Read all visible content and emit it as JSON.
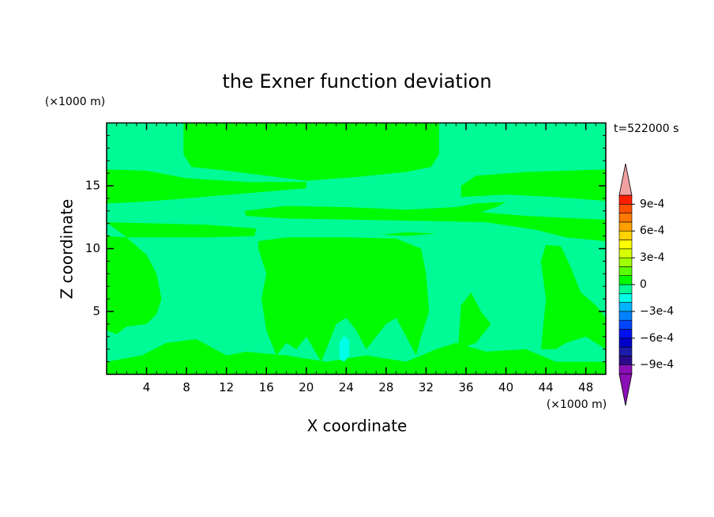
{
  "chart_data": {
    "type": "contour",
    "title": "the Exner function deviation",
    "xlabel": "X coordinate",
    "ylabel": "Z coordinate",
    "xunit": "(×1000 m)",
    "yunit": "(×1000 m)",
    "time_label": "t=522000 s",
    "xlim": [
      0,
      50
    ],
    "ylim": [
      0,
      20
    ],
    "xticks": [
      4,
      8,
      12,
      16,
      20,
      24,
      28,
      32,
      36,
      40,
      44,
      48
    ],
    "yticks": [
      5,
      10,
      15
    ],
    "minor_tick_step": 1,
    "levels": [
      -0.001,
      -0.0009,
      -0.0008,
      -0.0007,
      -0.0006,
      -0.0005,
      -0.0004,
      -0.0003,
      -0.0002,
      -0.0001,
      0,
      0.0001,
      0.0002,
      0.0003,
      0.0004,
      0.0005,
      0.0006,
      0.0007,
      0.0008,
      0.0009,
      0.001
    ],
    "colors": [
      "#8a0fb4",
      "#2a0a8a",
      "#1c1ca8",
      "#0000c8",
      "#0010ee",
      "#0046ff",
      "#0082ff",
      "#00b4ff",
      "#00ffe6",
      "#00fa96",
      "#00fa00",
      "#5cff00",
      "#a0ff00",
      "#d8ff00",
      "#ffff00",
      "#ffd200",
      "#ffa000",
      "#ff7800",
      "#ff5000",
      "#ff1e00"
    ],
    "extend_colors": [
      "#8a0fb4",
      "#f0a0a0"
    ],
    "colorbar_ticks": [
      {
        "value": 0.0009,
        "label": "9e-4"
      },
      {
        "value": 0.0006,
        "label": "6e-4"
      },
      {
        "value": 0.0003,
        "label": "3e-4"
      },
      0,
      {
        "value": -0.0003,
        "label": "−3e-4"
      },
      {
        "value": -0.0006,
        "label": "−6e-4"
      },
      {
        "value": -0.0009,
        "label": "−9e-4"
      }
    ],
    "regions": [
      {
        "level": -0.0001,
        "points": [
          [
            0,
            0
          ],
          [
            50,
            0
          ],
          [
            50,
            20
          ],
          [
            0,
            20
          ]
        ]
      },
      {
        "level": 0,
        "points": [
          [
            7.7,
            20
          ],
          [
            7.7,
            17.5
          ],
          [
            8.5,
            16.5
          ],
          [
            12,
            16.2
          ],
          [
            16,
            15.8
          ],
          [
            20,
            15.4
          ],
          [
            25,
            15.7
          ],
          [
            30,
            16.1
          ],
          [
            32.5,
            16.5
          ],
          [
            33.3,
            17.5
          ],
          [
            33.3,
            20
          ]
        ]
      },
      {
        "level": 0,
        "points": [
          [
            0,
            16.3
          ],
          [
            4,
            16.2
          ],
          [
            8,
            15.6
          ],
          [
            14,
            15.3
          ],
          [
            20,
            15.3
          ],
          [
            20,
            14.8
          ],
          [
            14,
            14.4
          ],
          [
            8,
            14
          ],
          [
            3,
            13.7
          ],
          [
            0,
            13.6
          ]
        ]
      },
      {
        "level": 0,
        "points": [
          [
            50,
            16.3
          ],
          [
            42,
            16.1
          ],
          [
            37,
            15.8
          ],
          [
            35.5,
            15
          ],
          [
            35.5,
            14.1
          ],
          [
            40,
            14.3
          ],
          [
            45,
            14.1
          ],
          [
            50,
            13.8
          ]
        ]
      },
      {
        "level": 0,
        "points": [
          [
            13.8,
            13
          ],
          [
            18,
            13.4
          ],
          [
            24,
            13.3
          ],
          [
            30,
            13.1
          ],
          [
            35,
            13.3
          ],
          [
            37,
            13.6
          ],
          [
            40,
            13.7
          ],
          [
            39,
            13.3
          ],
          [
            37.5,
            12.9
          ],
          [
            42,
            12.6
          ],
          [
            50,
            12.3
          ],
          [
            50,
            10.6
          ],
          [
            46,
            10.9
          ],
          [
            43,
            11.5
          ],
          [
            38,
            12.1
          ],
          [
            32,
            12.2
          ],
          [
            25,
            12.3
          ],
          [
            18,
            12.4
          ],
          [
            14,
            12.6
          ]
        ]
      },
      {
        "level": 0,
        "points": [
          [
            0,
            12.1
          ],
          [
            10,
            11.9
          ],
          [
            15,
            11.6
          ],
          [
            14.8,
            11
          ],
          [
            10,
            10.9
          ],
          [
            2,
            10.9
          ]
        ]
      },
      {
        "level": 0,
        "points": [
          [
            0,
            11
          ],
          [
            2,
            10.9
          ],
          [
            4,
            9.5
          ],
          [
            5,
            8
          ],
          [
            5.5,
            6
          ],
          [
            5,
            4.8
          ],
          [
            4,
            4
          ],
          [
            2,
            3.8
          ],
          [
            1,
            3.2
          ],
          [
            0,
            3.5
          ]
        ]
      },
      {
        "level": 0,
        "points": [
          [
            15.2,
            10.6
          ],
          [
            18,
            10.9
          ],
          [
            24,
            10.9
          ],
          [
            29,
            10.8
          ],
          [
            31.5,
            10
          ],
          [
            32,
            8
          ],
          [
            32.3,
            5
          ],
          [
            31.5,
            3
          ],
          [
            31,
            1.5
          ],
          [
            30,
            3
          ],
          [
            29,
            4.5
          ],
          [
            28,
            4
          ],
          [
            27,
            3
          ],
          [
            26,
            2
          ],
          [
            25,
            3.5
          ],
          [
            24,
            4.5
          ],
          [
            23,
            4
          ],
          [
            22,
            2
          ],
          [
            21.5,
            1
          ],
          [
            20,
            3
          ],
          [
            19,
            2
          ],
          [
            18,
            2.5
          ],
          [
            17,
            1.5
          ],
          [
            16,
            3.5
          ],
          [
            15.5,
            6
          ],
          [
            16,
            8
          ],
          [
            15.2,
            10
          ]
        ]
      },
      {
        "level": 0,
        "points": [
          [
            0,
            0
          ],
          [
            50,
            0
          ],
          [
            50,
            1
          ],
          [
            45,
            1
          ],
          [
            42,
            2
          ],
          [
            38,
            1.8
          ],
          [
            35,
            2.5
          ],
          [
            33,
            2
          ],
          [
            30,
            1
          ],
          [
            26,
            1.5
          ],
          [
            22,
            1
          ],
          [
            18,
            1.5
          ],
          [
            14,
            1.8
          ],
          [
            12,
            1.5
          ],
          [
            9,
            2.8
          ],
          [
            6,
            2.5
          ],
          [
            3.5,
            1.5
          ],
          [
            0,
            1
          ]
        ]
      },
      {
        "level": 0,
        "points": [
          [
            43.5,
            2
          ],
          [
            44,
            6
          ],
          [
            43.5,
            9
          ],
          [
            44,
            10.3
          ],
          [
            45.5,
            10.2
          ],
          [
            46.5,
            8.5
          ],
          [
            47.5,
            6.5
          ],
          [
            49,
            5.5
          ],
          [
            50,
            4.5
          ],
          [
            50,
            2
          ],
          [
            48,
            3
          ],
          [
            46,
            2.5
          ],
          [
            45,
            2
          ]
        ]
      },
      {
        "level": 0,
        "points": [
          [
            35.2,
            2
          ],
          [
            35.5,
            5.5
          ],
          [
            36.5,
            6.5
          ],
          [
            37.5,
            5
          ],
          [
            38.5,
            4
          ],
          [
            37,
            2.5
          ]
        ]
      },
      {
        "level": 0,
        "points": [
          [
            27.5,
            11.1
          ],
          [
            30,
            11.3
          ],
          [
            33,
            11.2
          ],
          [
            30,
            11
          ]
        ]
      },
      {
        "level": -0.0002,
        "points": [
          [
            23.3,
            1.2
          ],
          [
            23.8,
            1
          ],
          [
            24.3,
            1.5
          ],
          [
            24.3,
            2.7
          ],
          [
            23.8,
            3.1
          ],
          [
            23.3,
            2.5
          ]
        ]
      }
    ]
  }
}
